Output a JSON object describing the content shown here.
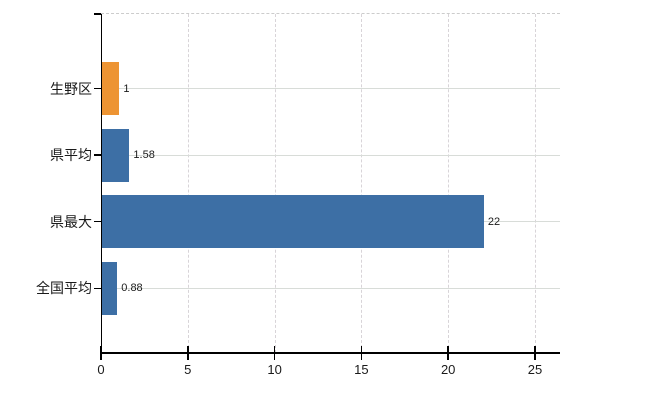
{
  "chart_data": {
    "type": "bar",
    "orientation": "horizontal",
    "title": "",
    "xlabel": "",
    "ylabel": "",
    "categories": [
      "生野区",
      "県平均",
      "県最大",
      "全国平均"
    ],
    "values": [
      1,
      1.58,
      22,
      0.88
    ],
    "value_labels": [
      "1",
      "1.58",
      "22",
      "0.88"
    ],
    "bar_colors": [
      "#ed9433",
      "#3d6fa5",
      "#3d6fa5",
      "#3d6fa5"
    ],
    "x_ticks": [
      0,
      5,
      10,
      15,
      20,
      25
    ],
    "x_tick_labels": [
      "0",
      "5",
      "10",
      "15",
      "20",
      "25"
    ],
    "xlim": [
      0,
      26.4
    ],
    "grid": true,
    "legend": false,
    "colors": {
      "bar_orange": "#ed9433",
      "bar_blue": "#3d6fa5",
      "axis": "#000000",
      "grid_horizontal": "#d8dcd8",
      "grid_vertical": "#d8d4d8",
      "plot_top_border": "#cccccc",
      "text": "#1a1a1a",
      "background": "#ffffff"
    }
  }
}
